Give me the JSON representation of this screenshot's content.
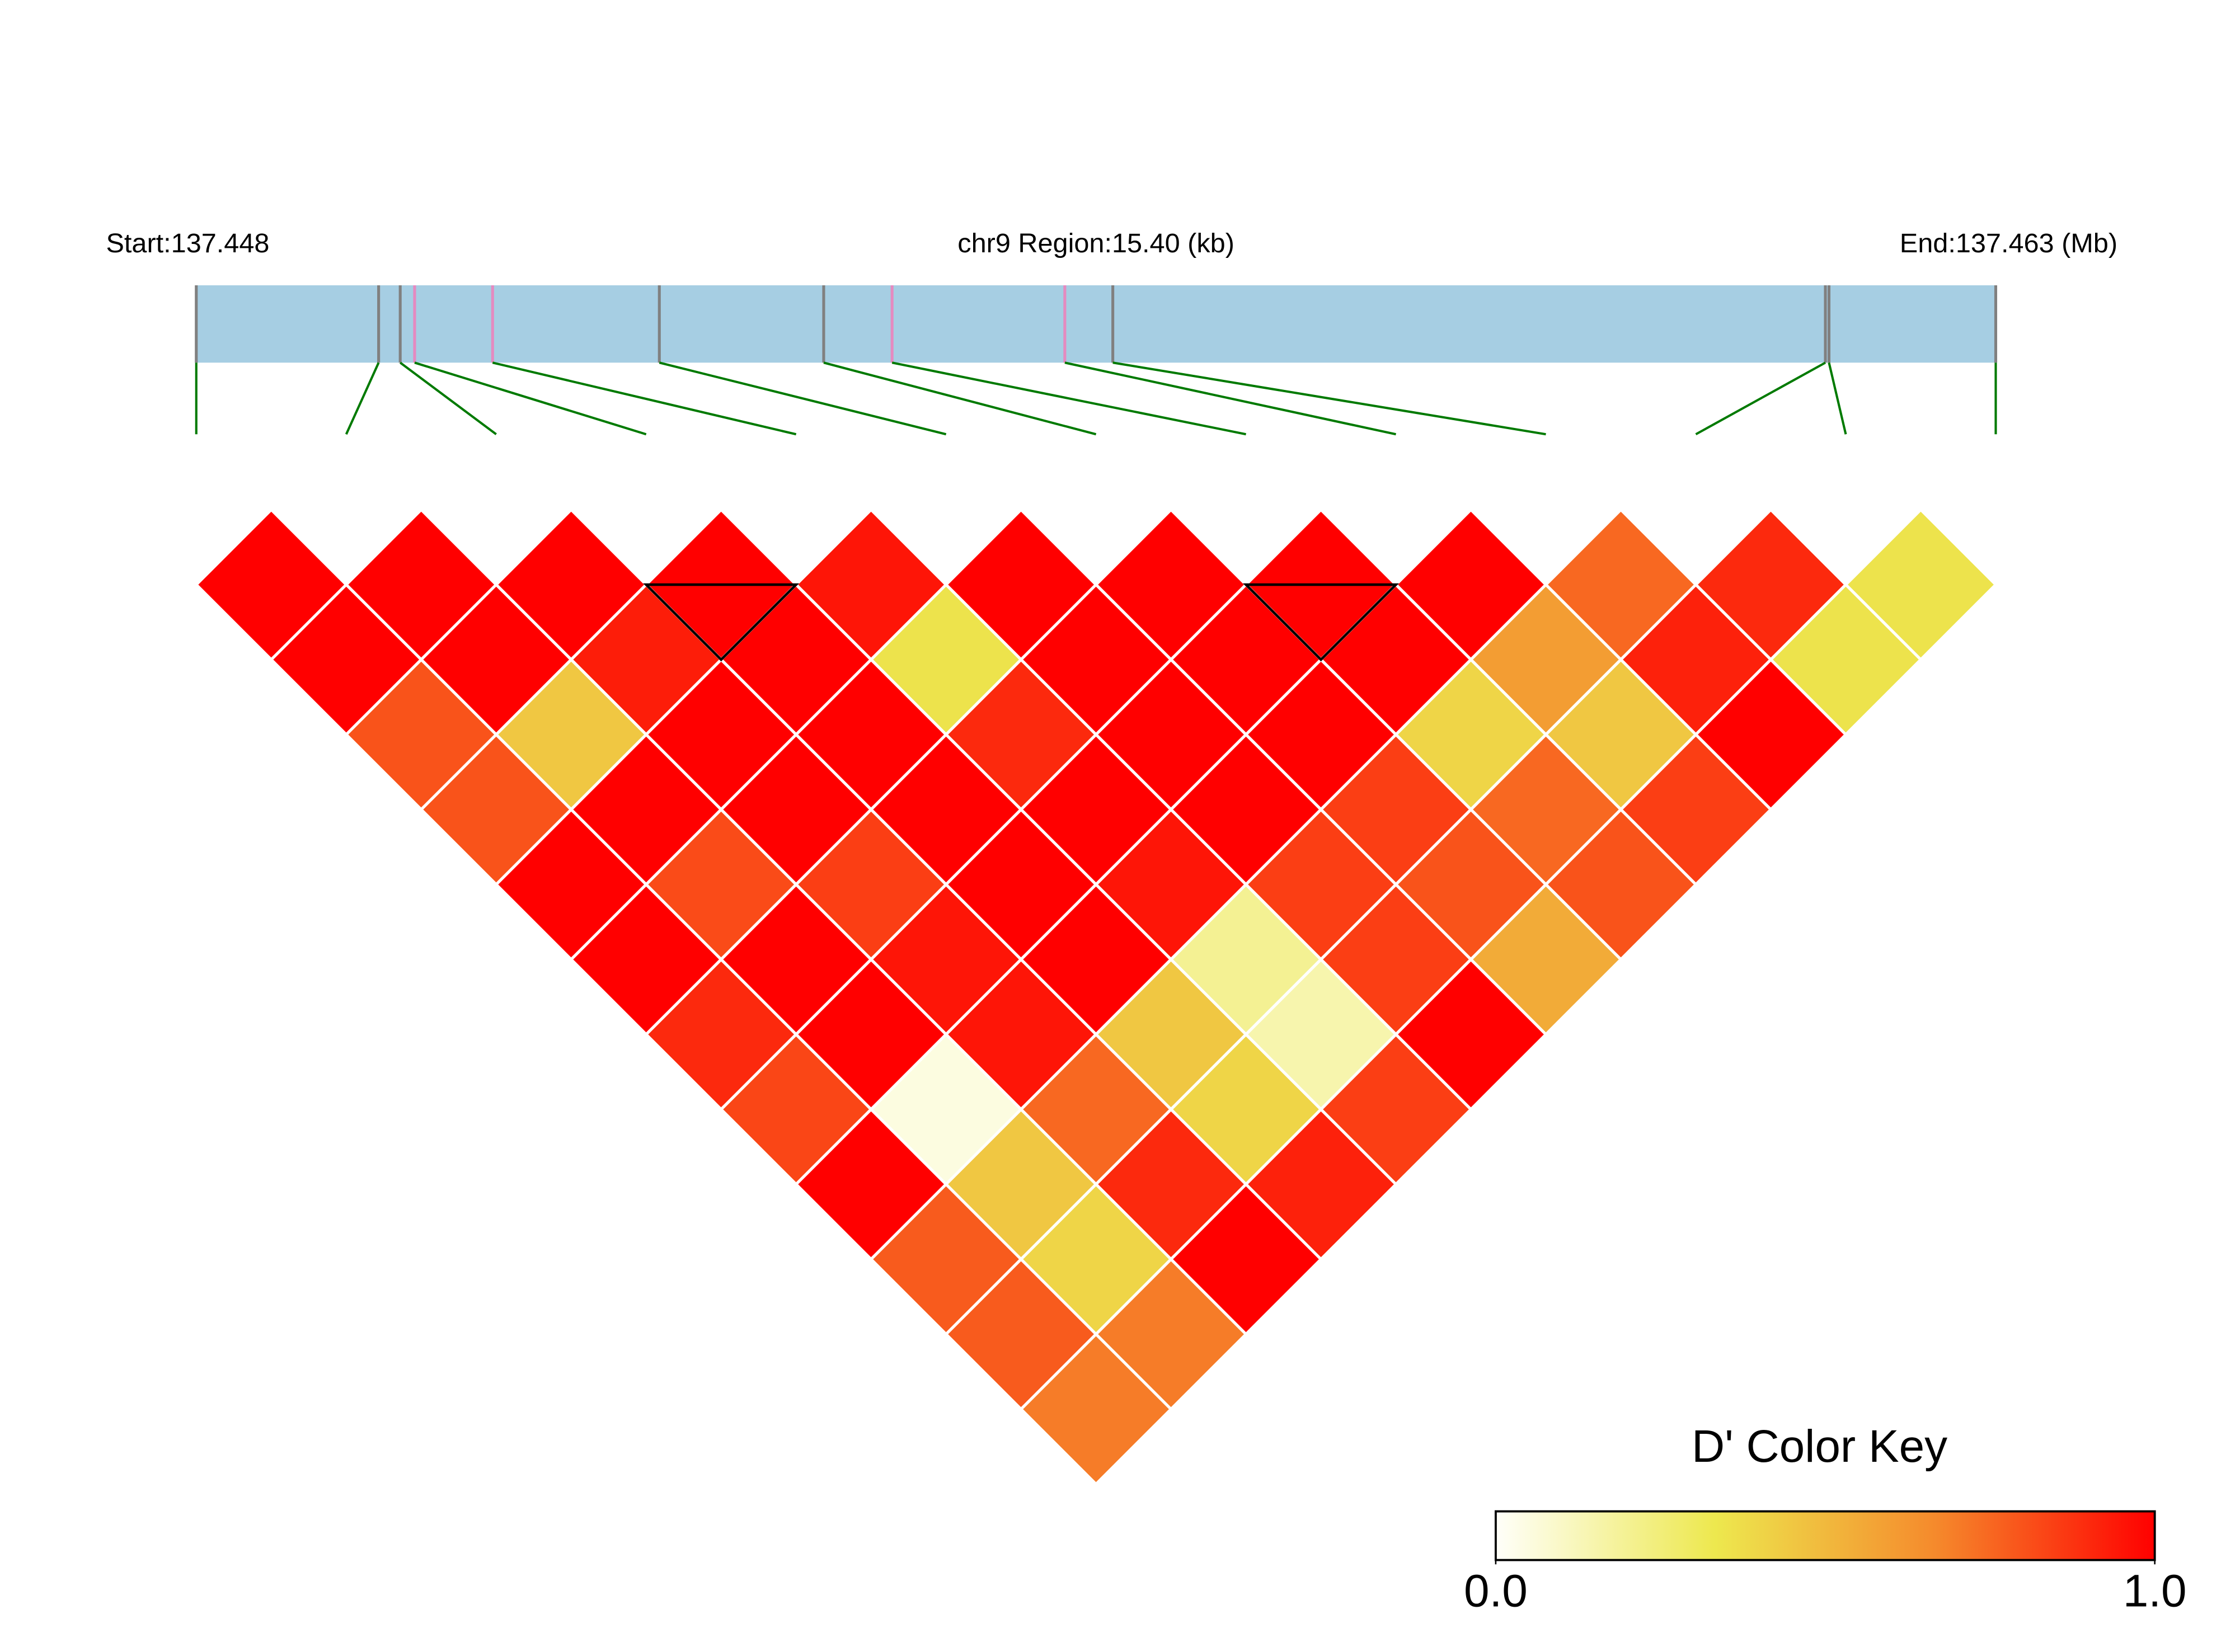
{
  "chart_data": {
    "type": "ld_heatmap",
    "labels": {
      "start": "Start:137.448",
      "region": "chr9 Region:15.40 (kb)",
      "end": "End:137.463 (Mb)"
    },
    "xlim": [
      137.448,
      137.463
    ],
    "snp_positions": [
      137.448,
      137.44952,
      137.4497,
      137.44982,
      137.45047,
      137.45186,
      137.45323,
      137.4538,
      137.45524,
      137.45564,
      137.46158,
      137.46161,
      137.463
    ],
    "snp_colors": [
      "#808080",
      "#808080",
      "#808080",
      "#e58ac0",
      "#e58ac0",
      "#808080",
      "#808080",
      "#e58ac0",
      "#e58ac0",
      "#808080",
      "#808080",
      "#808080",
      "#808080"
    ],
    "bar_color": "#a6cee3",
    "link_color": "#007a00",
    "dprime_by_distance": [
      [
        1,
        1,
        1,
        1,
        0.95,
        1,
        1,
        1,
        1,
        0.75,
        0.9,
        0.35
      ],
      [
        1,
        1,
        0.93,
        1,
        0.35,
        1,
        1,
        1,
        0.6,
        0.92,
        0.35
      ],
      [
        0.8,
        0.45,
        1,
        1,
        0.9,
        1,
        1,
        0.4,
        0.45,
        1
      ],
      [
        0.8,
        1,
        1,
        1,
        1,
        1,
        0.85,
        0.75,
        0.85
      ],
      [
        1,
        0.82,
        0.85,
        1,
        0.95,
        0.85,
        0.8,
        0.8
      ],
      [
        1,
        1,
        0.95,
        1,
        0.2,
        0.85,
        0.55
      ],
      [
        0.9,
        1,
        0.95,
        0.45,
        0.15,
        1
      ],
      [
        0.83,
        0.05,
        0.75,
        0.4,
        0.85
      ],
      [
        1,
        0.45,
        0.9,
        0.92
      ],
      [
        0.78,
        0.4,
        1
      ],
      [
        0.78,
        0.7
      ],
      [
        0.7
      ]
    ],
    "blocks": [
      [
        3,
        4
      ],
      [
        7,
        8
      ]
    ],
    "color_key": {
      "title": "D' Color Key",
      "range": [
        0,
        1
      ],
      "ticks": [
        {
          "value": 0,
          "label": "0.0"
        },
        {
          "value": 1,
          "label": "1.0"
        }
      ],
      "colors": [
        "#fffffa",
        "#ede84e",
        "#f58a2c",
        "#ff0000"
      ]
    }
  }
}
